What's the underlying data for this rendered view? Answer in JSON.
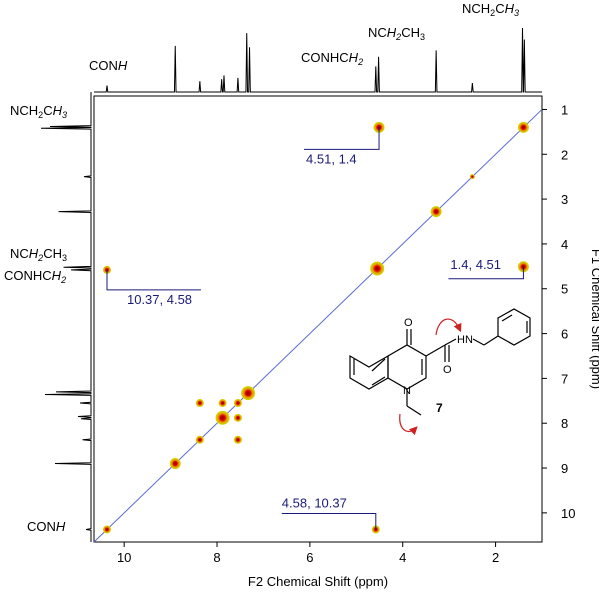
{
  "chart_data": {
    "type": "scatter",
    "title": "",
    "xlabel": "F2 Chemical Shift (ppm)",
    "ylabel": "F1 Chemical Shift (ppm)",
    "xlim": [
      10.65,
      1.0
    ],
    "ylim": [
      0.7,
      10.65
    ],
    "x_ticks": [
      10,
      8,
      6,
      4,
      2
    ],
    "y_ticks": [
      1,
      2,
      3,
      4,
      5,
      6,
      7,
      8,
      9,
      10
    ],
    "grid": false,
    "diagonal": true,
    "cross_peaks": [
      {
        "x": 10.37,
        "y": 10.37,
        "size": "small"
      },
      {
        "x": 8.9,
        "y": 8.9,
        "size": "medium"
      },
      {
        "x": 8.37,
        "y": 8.37,
        "size": "small"
      },
      {
        "x": 8.37,
        "y": 7.55,
        "size": "small"
      },
      {
        "x": 7.88,
        "y": 7.88,
        "size": "large"
      },
      {
        "x": 7.88,
        "y": 7.55,
        "size": "small"
      },
      {
        "x": 7.55,
        "y": 7.55,
        "size": "small"
      },
      {
        "x": 7.55,
        "y": 7.88,
        "size": "small"
      },
      {
        "x": 7.55,
        "y": 8.37,
        "size": "small"
      },
      {
        "x": 7.33,
        "y": 7.33,
        "size": "large"
      },
      {
        "x": 4.55,
        "y": 4.55,
        "size": "large"
      },
      {
        "x": 3.28,
        "y": 3.28,
        "size": "medium"
      },
      {
        "x": 2.5,
        "y": 2.5,
        "size": "tiny"
      },
      {
        "x": 1.4,
        "y": 1.4,
        "size": "medium"
      },
      {
        "x": 10.37,
        "y": 4.58,
        "size": "small"
      },
      {
        "x": 4.58,
        "y": 10.37,
        "size": "small"
      },
      {
        "x": 4.51,
        "y": 1.4,
        "size": "medium"
      },
      {
        "x": 1.4,
        "y": 4.51,
        "size": "medium"
      }
    ],
    "annotations": [
      {
        "text": "4.51, 1.4",
        "x": 4.51,
        "y": 1.4
      },
      {
        "text": "1.4, 4.51",
        "x": 1.4,
        "y": 4.51
      },
      {
        "text": "10.37, 4.58",
        "x": 10.37,
        "y": 4.58
      },
      {
        "text": "4.58, 10.37",
        "x": 4.58,
        "y": 10.37
      }
    ],
    "top_projection_peaks": [
      {
        "ppm": 10.37,
        "h": 0.1
      },
      {
        "ppm": 8.9,
        "h": 0.72
      },
      {
        "ppm": 8.37,
        "h": 0.17
      },
      {
        "ppm": 7.9,
        "h": 0.2
      },
      {
        "ppm": 7.85,
        "h": 0.26
      },
      {
        "ppm": 7.55,
        "h": 0.22
      },
      {
        "ppm": 7.36,
        "h": 0.92
      },
      {
        "ppm": 7.3,
        "h": 0.7
      },
      {
        "ppm": 4.58,
        "h": 0.4
      },
      {
        "ppm": 4.52,
        "h": 0.55
      },
      {
        "ppm": 3.28,
        "h": 0.65
      },
      {
        "ppm": 2.5,
        "h": 0.14
      },
      {
        "ppm": 1.42,
        "h": 1.0
      },
      {
        "ppm": 1.38,
        "h": 0.82
      }
    ],
    "left_projection_peaks": [
      {
        "ppm": 10.37,
        "h": 0.1
      },
      {
        "ppm": 8.9,
        "h": 0.72
      },
      {
        "ppm": 8.37,
        "h": 0.17
      },
      {
        "ppm": 7.9,
        "h": 0.2
      },
      {
        "ppm": 7.85,
        "h": 0.26
      },
      {
        "ppm": 7.55,
        "h": 0.22
      },
      {
        "ppm": 7.36,
        "h": 0.92
      },
      {
        "ppm": 7.3,
        "h": 0.7
      },
      {
        "ppm": 4.58,
        "h": 0.4
      },
      {
        "ppm": 4.52,
        "h": 0.55
      },
      {
        "ppm": 3.28,
        "h": 0.65
      },
      {
        "ppm": 2.5,
        "h": 0.14
      },
      {
        "ppm": 1.42,
        "h": 1.0
      },
      {
        "ppm": 1.38,
        "h": 0.82
      }
    ],
    "top_peak_labels": [
      {
        "text": "CONH",
        "ppm": 10.37
      },
      {
        "text": "CONHCH2",
        "ppm": 4.9
      },
      {
        "text": "NCH2CH3",
        "ppm": 4.15
      },
      {
        "text": "NCH2CH3",
        "ppm": 1.55
      }
    ],
    "left_peak_labels": [
      {
        "text": "NCH2CH3",
        "ppm": 1.4
      },
      {
        "text": "NCH2CH3",
        "ppm": 4.2
      },
      {
        "text": "CONHCH2",
        "ppm": 4.65
      },
      {
        "text": "CONH",
        "ppm": 10.37
      }
    ],
    "compound_label": "7",
    "structure_atoms": {
      "oxygen_ketone": "O",
      "oxygen_amide": "O",
      "amide_nh": "HN",
      "ring_n": "N"
    }
  }
}
